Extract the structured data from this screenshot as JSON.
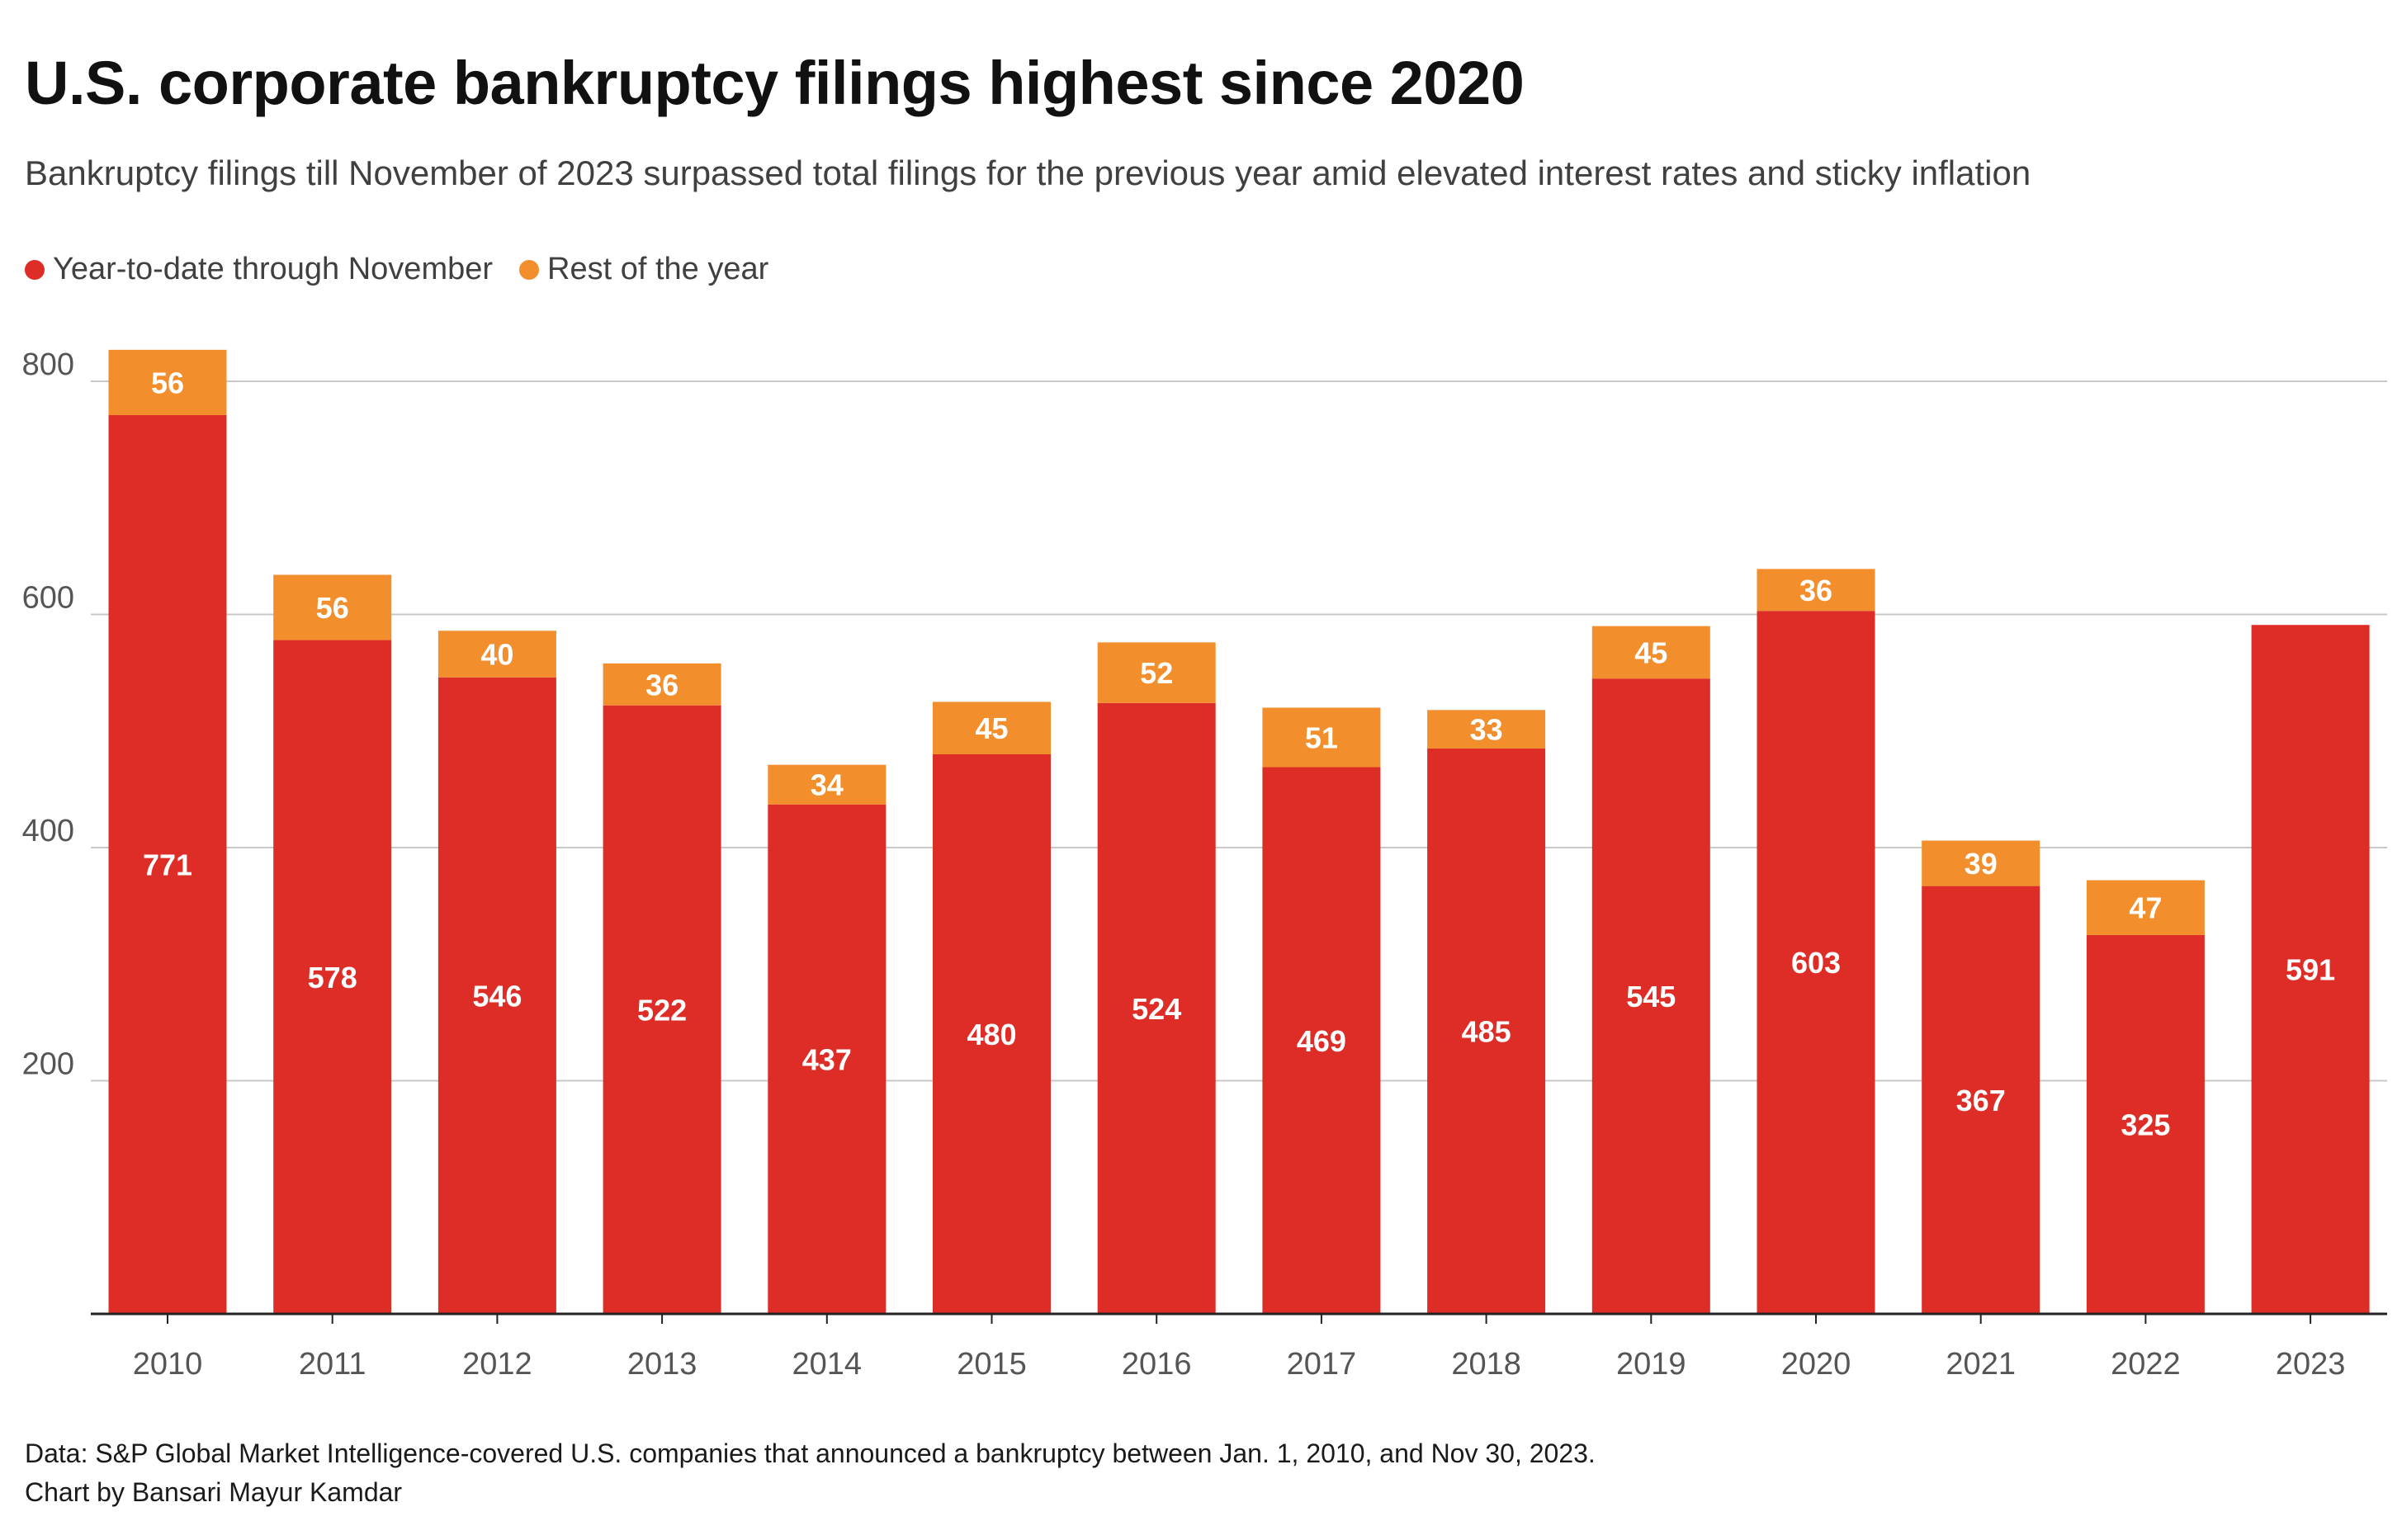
{
  "title": "U.S. corporate bankruptcy filings highest since 2020",
  "subtitle": "Bankruptcy filings till November of 2023 surpassed total filings for the previous year amid elevated interest rates and sticky inflation",
  "footer": {
    "source": "Data: S&P Global Market Intelligence-covered U.S. companies that announced a bankruptcy between Jan. 1, 2010, and Nov 30, 2023.",
    "credit": "Chart by Bansari Mayur Kamdar"
  },
  "colors": {
    "ytd": "#de2d26",
    "rest": "#f28e2b",
    "grid": "#c8c8c8",
    "axis": "#222222",
    "tick_text": "#555555",
    "label_text": "#ffffff"
  },
  "chart_data": {
    "type": "bar",
    "stacked": true,
    "title": "U.S. corporate bankruptcy filings highest since 2020",
    "xlabel": "",
    "ylabel": "",
    "categories": [
      "2010",
      "2011",
      "2012",
      "2013",
      "2014",
      "2015",
      "2016",
      "2017",
      "2018",
      "2019",
      "2020",
      "2021",
      "2022",
      "2023"
    ],
    "series": [
      {
        "name": "Year-to-date through November",
        "values": [
          771,
          578,
          546,
          522,
          437,
          480,
          524,
          469,
          485,
          545,
          603,
          367,
          325,
          591
        ]
      },
      {
        "name": "Rest of the year",
        "values": [
          56,
          56,
          40,
          36,
          34,
          45,
          52,
          51,
          33,
          45,
          36,
          39,
          47,
          null
        ]
      }
    ],
    "ylim": [
      0,
      800
    ],
    "yticks": [
      200,
      400,
      600,
      800
    ],
    "grid": true,
    "legend": "top-left"
  }
}
